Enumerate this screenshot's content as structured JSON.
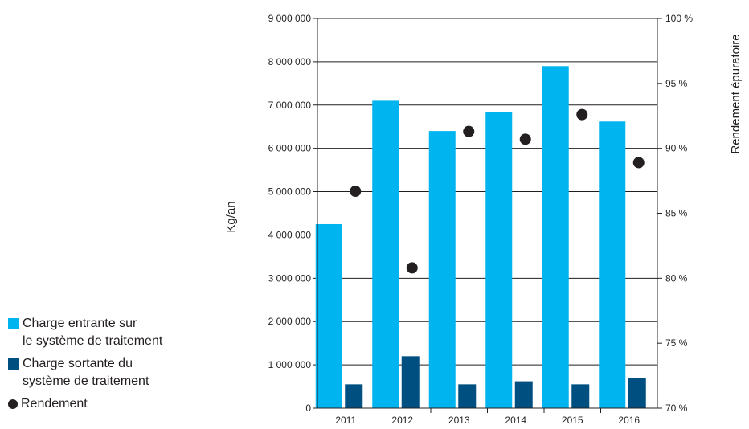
{
  "chart_data": {
    "type": "bar",
    "categories": [
      "2011",
      "2012",
      "2013",
      "2014",
      "2015",
      "2016"
    ],
    "series": [
      {
        "name": "Charge entrante sur\nle système de traitement",
        "values": [
          4250000,
          7100000,
          6400000,
          6830000,
          7900000,
          6620000
        ],
        "color": "#00b5ef"
      },
      {
        "name": "Charge sortante du\nsystème de traitement",
        "values": [
          550000,
          1200000,
          550000,
          620000,
          550000,
          700000
        ],
        "color": "#004f81"
      },
      {
        "name": "Rendement",
        "type": "scatter",
        "axis": "right",
        "values": [
          86.7,
          80.8,
          91.3,
          90.7,
          92.6,
          88.9
        ],
        "color": "#231f20"
      }
    ],
    "ylabel": "Kg/an",
    "y2label": "Rendement épuratoire",
    "ylim": [
      0,
      9000000
    ],
    "y2lim": [
      70,
      100
    ],
    "yticks": [
      0,
      1000000,
      2000000,
      3000000,
      4000000,
      5000000,
      6000000,
      7000000,
      8000000,
      9000000
    ],
    "yticklabels": [
      "0",
      "1 000 000",
      "2 000 000",
      "3 000 000",
      "4 000 000",
      "5 000 000",
      "6 000 000",
      "7 000 000",
      "8 000 000",
      "9 000 000"
    ],
    "y2ticks": [
      70,
      75,
      80,
      85,
      90,
      95,
      100
    ],
    "y2ticklabels": [
      "70 %",
      "75 %",
      "80 %",
      "85 %",
      "90 %",
      "95 %",
      "100 %"
    ],
    "grid": true,
    "legend_position": "bottom-left"
  }
}
